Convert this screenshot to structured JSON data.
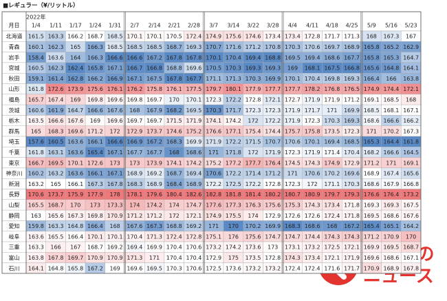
{
  "title": "■レギュラー（¥/リットル）",
  "table": {
    "corner": "月日",
    "year": "2022年",
    "columns": [
      "1/4",
      "1/11",
      "1/17",
      "1/24",
      "1/31",
      "2/7",
      "2/14",
      "2/21",
      "2/28",
      "3/7",
      "3/14",
      "3/22",
      "3/28",
      "4/4",
      "4/11",
      "4/18",
      "4/25",
      "5/9",
      "5/16",
      "5/23"
    ],
    "rows": [
      {
        "label": "北海道",
        "values": [
          161.5,
          163.3,
          166.2,
          168.7,
          168.5,
          170.1,
          170.1,
          170.5,
          172.4,
          174.9,
          175.6,
          174.6,
          173.4,
          173.4,
          172.8,
          171.7,
          171.3,
          168.0,
          167.3,
          167.0
        ]
      },
      {
        "label": "青森",
        "values": [
          160.1,
          162.3,
          165.0,
          166.3,
          168.5,
          168.5,
          168.5,
          168.7,
          169.3,
          170.7,
          171.6,
          171.2,
          170.8,
          170.3,
          170.6,
          169.7,
          168.9,
          165.8,
          165.2,
          162.9
        ]
      },
      {
        "label": "岩手",
        "values": [
          158.4,
          163.6,
          164.0,
          166.3,
          166.6,
          166.6,
          167.2,
          167.8,
          167.8,
          170.1,
          170.4,
          169.4,
          168.8,
          169.5,
          169.4,
          168.6,
          167.7,
          165.8,
          165.3,
          164.7
        ]
      },
      {
        "label": "宮城",
        "values": [
          160.5,
          162.3,
          162.4,
          165.8,
          167.1,
          166.7,
          166.8,
          168.8,
          169.6,
          170.5,
          170.3,
          169.3,
          169.3,
          169.0,
          168.1,
          167.5,
          166.8,
          165.6,
          164.8,
          164.1
        ]
      },
      {
        "label": "秋田",
        "values": [
          159.1,
          161.4,
          162.8,
          166.2,
          166.9,
          167.1,
          167.5,
          167.8,
          167.7,
          171.1,
          171.3,
          170.3,
          169.9,
          170.1,
          170.4,
          169.8,
          169.3,
          166.4,
          166.0,
          163.8
        ]
      },
      {
        "label": "山形",
        "values": [
          161.8,
          172.6,
          173.9,
          175.6,
          176.1,
          176.2,
          175.8,
          176.1,
          177.5,
          179.7,
          180.1,
          177.9,
          177.7,
          177.7,
          178.2,
          176.8,
          176.5,
          174.9,
          174.4,
          172.1
        ]
      },
      {
        "label": "福島",
        "values": [
          165.7,
          167.4,
          169.0,
          169.8,
          169.6,
          169.8,
          169.7,
          170.0,
          170.1,
          172.3,
          172.2,
          172.8,
          172.1,
          172.7,
          171.9,
          171.9,
          171.2,
          169.1,
          168.5,
          168.0
        ]
      },
      {
        "label": "茨城",
        "values": [
          160.6,
          161.9,
          164.7,
          166.6,
          167.6,
          168.0,
          167.9,
          168.2,
          169.5,
          170.3,
          171.7,
          172.3,
          172.3,
          171.9,
          171.7,
          171.0,
          169.9,
          168.5,
          168.1,
          167.1
        ]
      },
      {
        "label": "栃木",
        "values": [
          163.5,
          166.6,
          167.6,
          169.0,
          169.6,
          169.7,
          169.7,
          171.5,
          171.9,
          174.1,
          174.2,
          172.0,
          172.2,
          171.9,
          172.3,
          170.3,
          169.3,
          168.6,
          166.6,
          166.2
        ]
      },
      {
        "label": "群馬",
        "values": [
          165.0,
          168.3,
          169.6,
          171.2,
          172.0,
          172.9,
          173.7,
          174.6,
          175.2,
          176.6,
          177.1,
          175.4,
          174.4,
          175.7,
          175.8,
          173.5,
          172.3,
          171.0,
          170.2,
          167.3
        ]
      },
      {
        "label": "埼玉",
        "values": [
          157.6,
          160.5,
          163.6,
          166.1,
          166.6,
          166.9,
          167.2,
          168.3,
          169.9,
          171.9,
          172.2,
          171.5,
          170.7,
          170.6,
          170.1,
          169.4,
          168.5,
          165.3,
          164.4,
          161.8
        ]
      },
      {
        "label": "千葉",
        "values": [
          161.8,
          163.1,
          163.6,
          165.4,
          167.1,
          167.7,
          167.7,
          168.0,
          168.6,
          171.0,
          171.8,
          172.0,
          171.9,
          172.3,
          171.9,
          171.4,
          170.4,
          168.2,
          166.6,
          164.5
        ]
      },
      {
        "label": "東京",
        "values": [
          166.7,
          169.5,
          170.1,
          172.6,
          173.0,
          173.0,
          173.9,
          174.1,
          174.2,
          175.2,
          177.2,
          177.7,
          176.4,
          174.5,
          174.3,
          174.9,
          172.9,
          171.2,
          171.0,
          169.1
        ]
      },
      {
        "label": "神奈川",
        "values": [
          160.2,
          163.2,
          163.6,
          166.1,
          167.1,
          168.9,
          169.2,
          168.7,
          169.4,
          170.6,
          172.2,
          171.4,
          171.2,
          171.0,
          170.6,
          170.2,
          169.6,
          168.9,
          167.4,
          165.6
        ]
      },
      {
        "label": "新潟",
        "values": [
          163.2,
          165.0,
          166.1,
          167.3,
          167.8,
          168.3,
          168.9,
          168.4,
          168.9,
          172.2,
          172.5,
          172.2,
          172.8,
          172.3,
          172.0,
          171.1,
          170.3,
          168.6,
          167.9,
          166.8
        ]
      },
      {
        "label": "長野",
        "values": [
          170.6,
          173.7,
          175.9,
          177.9,
          178.0,
          178.1,
          179.6,
          180.4,
          182.6,
          182.8,
          181.8,
          181.4,
          180.2,
          180.7,
          180.9,
          179.7,
          179.3,
          176.6,
          176.4,
          173.2
        ]
      },
      {
        "label": "山梨",
        "values": [
          165.5,
          168.7,
          170.0,
          173.0,
          173.3,
          174.0,
          174.2,
          174.0,
          174.7,
          177.6,
          177.3,
          176.3,
          175.6,
          175.3,
          174.3,
          173.4,
          171.8,
          169.3,
          169.3,
          167.5
        ]
      },
      {
        "label": "静岡",
        "values": [
          163.0,
          165.6,
          167.3,
          169.8,
          170.9,
          171.2,
          171.2,
          172.0,
          172.1,
          174.9,
          175.5,
          174.0,
          172.9,
          172.6,
          172.6,
          172.4,
          171.8,
          169.5,
          168.6,
          167.6
        ]
      },
      {
        "label": "愛知",
        "values": [
          159.8,
          163.3,
          164.8,
          166.4,
          168.0,
          167.6,
          167.3,
          168.8,
          169.2,
          171.0,
          170.0,
          170.2,
          169.9,
          168.3,
          168.6,
          168.0,
          167.2,
          165.4,
          165.1,
          164.2
        ]
      },
      {
        "label": "岐阜",
        "values": [
          163.6,
          165.5,
          166.4,
          170.1,
          170.1,
          170.4,
          171.3,
          172.4,
          172.8,
          175.1,
          176.0,
          175.6,
          174.7,
          174.7,
          174.4,
          174.3,
          174.3,
          171.2,
          170.9,
          170.0
        ]
      },
      {
        "label": "三重",
        "values": [
          163.3,
          166.0,
          167.0,
          168.7,
          169.2,
          169.4,
          169.9,
          170.4,
          170.6,
          173.2,
          174.2,
          173.6,
          173.0,
          173.1,
          173.2,
          172.5,
          172.1,
          169.9,
          169.5,
          168.7
        ]
      },
      {
        "label": "富山",
        "values": [
          163.8,
          167.8,
          169.7,
          170.9,
          170.9,
          171.3,
          171.0,
          170.4,
          170.4,
          172.9,
          175.0,
          173.5,
          172.8,
          174.3,
          173.4,
          172.1,
          171.9,
          169.6,
          168.6,
          167.1
        ]
      },
      {
        "label": "石川",
        "values": [
          164.1,
          164.8,
          165.8,
          167.2,
          169.0,
          169.6,
          169.5,
          170.3,
          170.6,
          172.5,
          173.6,
          173.2,
          173.2,
          172.4,
          172.4,
          171.6,
          171.7,
          170.9,
          168.9,
          167.8
        ]
      }
    ]
  },
  "logo": {
    "line1": "くるまの",
    "line2": "ニュース"
  }
}
